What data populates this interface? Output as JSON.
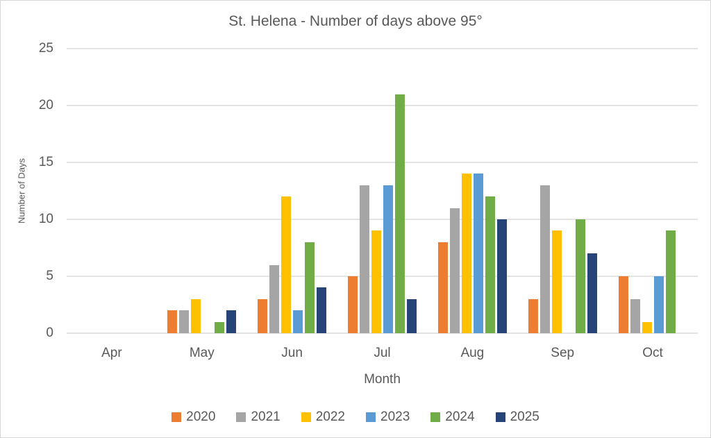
{
  "chart_data": {
    "type": "bar",
    "title": "St. Helena - Number of days above 95°",
    "xlabel": "Month",
    "ylabel": "Number of Days",
    "categories": [
      "Apr",
      "May",
      "Jun",
      "Jul",
      "Aug",
      "Sep",
      "Oct"
    ],
    "series": [
      {
        "name": "2020",
        "color": "#ED7D31",
        "values": [
          0,
          2,
          3,
          5,
          8,
          3,
          5
        ]
      },
      {
        "name": "2021",
        "color": "#A5A5A5",
        "values": [
          0,
          2,
          6,
          13,
          11,
          13,
          3
        ]
      },
      {
        "name": "2022",
        "color": "#FFC000",
        "values": [
          0,
          3,
          12,
          9,
          14,
          9,
          1
        ]
      },
      {
        "name": "2023",
        "color": "#5B9BD5",
        "values": [
          0,
          0,
          2,
          13,
          14,
          0,
          5
        ]
      },
      {
        "name": "2024",
        "color": "#70AD47",
        "values": [
          0,
          1,
          8,
          21,
          12,
          10,
          9
        ]
      },
      {
        "name": "2025",
        "color": "#264478",
        "values": [
          0,
          2,
          4,
          3,
          10,
          7,
          0
        ]
      }
    ],
    "ylim": [
      0,
      25
    ],
    "ytick_step": 5,
    "yticks": [
      0,
      5,
      10,
      15,
      20,
      25
    ],
    "grid": "horizontal",
    "legend_position": "bottom",
    "text_color": "#595959",
    "gridline_color": "#e4e4e4"
  }
}
